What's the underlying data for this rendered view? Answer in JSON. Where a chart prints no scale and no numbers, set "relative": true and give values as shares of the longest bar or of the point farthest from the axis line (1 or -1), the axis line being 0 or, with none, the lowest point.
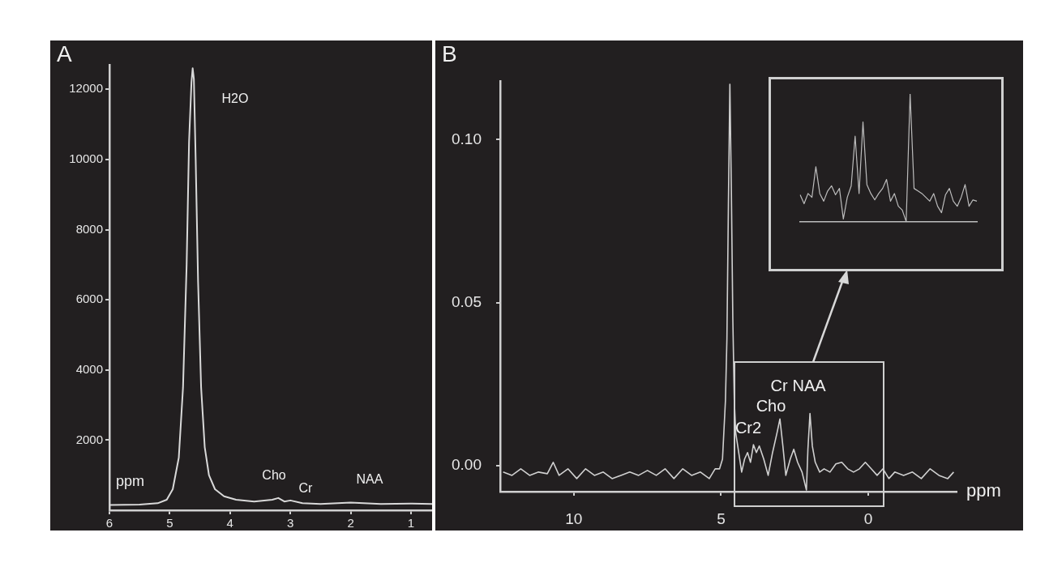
{
  "chart_data": [
    {
      "type": "line",
      "title": "A",
      "xlabel": "ppm",
      "color": "#d9d9d9",
      "xlim": [
        6,
        0.65
      ],
      "xticks": [
        6,
        5,
        4,
        3,
        2,
        1
      ],
      "ylim": [
        0,
        12700
      ],
      "yticks": [
        2000,
        4000,
        6000,
        8000,
        10000,
        12000
      ],
      "x": [
        6.0,
        5.5,
        5.2,
        5.05,
        4.95,
        4.85,
        4.78,
        4.72,
        4.68,
        4.64,
        4.62,
        4.6,
        4.57,
        4.53,
        4.48,
        4.42,
        4.35,
        4.25,
        4.1,
        3.9,
        3.6,
        3.3,
        3.2,
        3.1,
        3.0,
        2.8,
        2.5,
        2.0,
        1.5,
        1.0,
        0.65
      ],
      "values": [
        150,
        160,
        200,
        300,
        600,
        1500,
        3500,
        7000,
        10500,
        12200,
        12600,
        12300,
        10000,
        6500,
        3500,
        1800,
        1000,
        600,
        400,
        300,
        250,
        300,
        350,
        250,
        280,
        200,
        180,
        220,
        180,
        190,
        180
      ],
      "annotations": [
        "H2O",
        "Cho",
        "Cr",
        "NAA"
      ]
    },
    {
      "type": "line",
      "title": "B",
      "xlabel": "ppm",
      "color": "#d0d0d0",
      "xlim": [
        12.5,
        -3
      ],
      "xticks": [
        10,
        5,
        0
      ],
      "ylim": [
        -0.008,
        0.118
      ],
      "yticks": [
        {
          "value": 0,
          "label": "0.00"
        },
        {
          "value": 0.05,
          "label": "0.05"
        },
        {
          "value": 0.1,
          "label": "0.10"
        }
      ],
      "x": [
        12.4,
        12.1,
        11.8,
        11.5,
        11.2,
        10.9,
        10.7,
        10.5,
        10.2,
        9.9,
        9.6,
        9.3,
        9.0,
        8.7,
        8.4,
        8.1,
        7.8,
        7.5,
        7.2,
        6.9,
        6.6,
        6.3,
        6.0,
        5.7,
        5.4,
        5.2,
        5.05,
        4.95,
        4.85,
        4.8,
        4.75,
        4.7,
        4.65,
        4.6,
        4.55,
        4.5,
        4.4,
        4.3,
        4.2,
        4.1,
        4.0,
        3.9,
        3.8,
        3.7,
        3.55,
        3.4,
        3.25,
        3.1,
        3.0,
        2.9,
        2.8,
        2.65,
        2.53,
        2.4,
        2.25,
        2.1,
        2.05,
        1.98,
        1.9,
        1.8,
        1.65,
        1.5,
        1.3,
        1.1,
        0.9,
        0.7,
        0.5,
        0.3,
        0.1,
        -0.1,
        -0.3,
        -0.5,
        -0.7,
        -0.9,
        -1.2,
        -1.5,
        -1.8,
        -2.1,
        -2.4,
        -2.7,
        -2.9
      ],
      "values": [
        -0.002,
        -0.003,
        -0.001,
        -0.003,
        -0.002,
        -0.0025,
        0.001,
        -0.003,
        -0.001,
        -0.004,
        -0.001,
        -0.003,
        -0.002,
        -0.004,
        -0.003,
        -0.002,
        -0.003,
        -0.0015,
        -0.003,
        -0.001,
        -0.004,
        -0.001,
        -0.003,
        -0.002,
        -0.004,
        -0.001,
        -0.001,
        0.002,
        0.02,
        0.039,
        0.08,
        0.117,
        0.085,
        0.045,
        0.02,
        0.01,
        0.004,
        -0.002,
        0.002,
        0.004,
        0.001,
        0.0064,
        0.004,
        0.006,
        0.002,
        -0.003,
        0.004,
        0.01,
        0.0143,
        0.006,
        -0.003,
        0.002,
        0.005,
        0.001,
        -0.002,
        -0.0075,
        0.005,
        0.016,
        0.006,
        0.001,
        -0.002,
        -0.001,
        -0.002,
        0.0005,
        0.001,
        -0.001,
        -0.002,
        -0.001,
        0.001,
        -0.001,
        -0.003,
        -0.001,
        -0.004,
        -0.002,
        -0.003,
        -0.002,
        -0.004,
        -0.001,
        -0.003,
        -0.004,
        -0.002
      ],
      "annotations": [
        "Cr2",
        "Cho",
        "Cr",
        "NAA"
      ]
    },
    {
      "type": "line",
      "relative": true,
      "color": "#bcbcbc",
      "categories": [
        null,
        null,
        null,
        null,
        null,
        null,
        null,
        null,
        null,
        null,
        null,
        null,
        null,
        null,
        null,
        null,
        null,
        null,
        null,
        null,
        null,
        null,
        null,
        null,
        null,
        null,
        null,
        null,
        null,
        null,
        null,
        null,
        null,
        null,
        null,
        null,
        null,
        null,
        null,
        null,
        null,
        null,
        null,
        null,
        null,
        null
      ],
      "values": [
        0.21,
        0.14,
        0.22,
        0.19,
        0.43,
        0.22,
        0.16,
        0.24,
        0.28,
        0.21,
        0.26,
        0.02,
        0.19,
        0.28,
        0.67,
        0.22,
        0.78,
        0.29,
        0.22,
        0.17,
        0.22,
        0.26,
        0.33,
        0.16,
        0.22,
        0.12,
        0.09,
        0,
        1,
        0.26,
        0.24,
        0.22,
        0.19,
        0.16,
        0.22,
        0.12,
        0.07,
        0.21,
        0.26,
        0.16,
        0.12,
        0.19,
        0.29,
        0.12,
        0.17,
        0.16
      ]
    }
  ]
}
